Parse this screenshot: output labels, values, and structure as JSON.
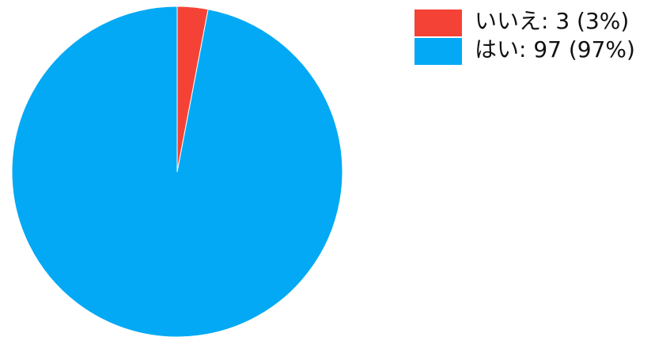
{
  "chart_data": {
    "type": "pie",
    "title": "",
    "slices": [
      {
        "name": "いいえ",
        "value": 3,
        "percent": 3,
        "color": "#F44336",
        "legend_label": "いいえ: 3 (3%)"
      },
      {
        "name": "はい",
        "value": 97,
        "percent": 97,
        "color": "#03A9F4",
        "legend_label": "はい: 97 (97%)"
      }
    ],
    "start_angle_deg": 0,
    "direction": "clockwise",
    "legend_position": "top-right"
  }
}
